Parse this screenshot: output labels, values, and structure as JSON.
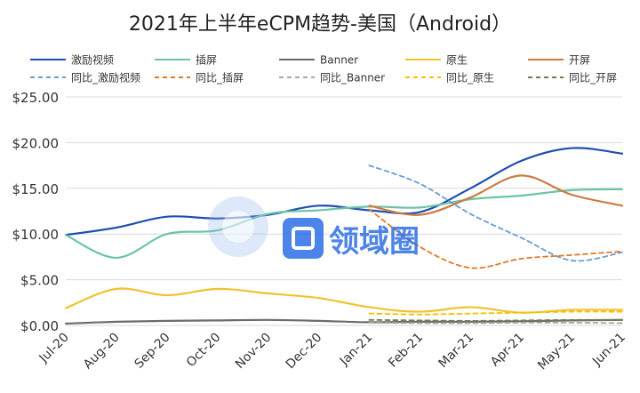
{
  "chart_data": {
    "type": "line",
    "title": "2021年上半年eCPM趋势-美国（Android）",
    "categories": [
      "Jul-20",
      "Aug-20",
      "Sep-20",
      "Oct-20",
      "Nov-20",
      "Dec-20",
      "Jan-21",
      "Feb-21",
      "Mar-21",
      "Apr-21",
      "May-21",
      "Jun-21"
    ],
    "ylim": [
      0,
      25
    ],
    "yticks": [
      "$0.00",
      "$5.00",
      "$10.00",
      "$15.00",
      "$20.00",
      "$25.00"
    ],
    "ytick_values": [
      0,
      5,
      10,
      15,
      20,
      25
    ],
    "grid": true,
    "legend_position": "top",
    "series": [
      {
        "name": "激励视频",
        "color": "#1f4fb0",
        "dashed": false,
        "values": [
          9.9,
          10.7,
          11.9,
          11.7,
          12.1,
          13.1,
          12.6,
          12.4,
          15.0,
          18.0,
          19.4,
          18.8
        ]
      },
      {
        "name": "插屏",
        "color": "#6cc4a4",
        "dashed": false,
        "values": [
          9.9,
          7.4,
          10.0,
          10.4,
          12.2,
          12.6,
          13.0,
          12.9,
          13.8,
          14.2,
          14.8,
          14.9
        ]
      },
      {
        "name": "Banner",
        "color": "#6b6b6b",
        "dashed": false,
        "values": [
          0.2,
          0.4,
          0.5,
          0.55,
          0.6,
          0.5,
          0.35,
          0.4,
          0.4,
          0.45,
          0.55,
          0.6
        ]
      },
      {
        "name": "原生",
        "color": "#f2c12e",
        "dashed": false,
        "values": [
          1.9,
          4.0,
          3.3,
          4.0,
          3.5,
          3.0,
          2.0,
          1.5,
          2.0,
          1.4,
          1.7,
          1.7
        ]
      },
      {
        "name": "开屏",
        "color": "#cc7b42",
        "dashed": false,
        "values": [
          null,
          null,
          null,
          null,
          null,
          null,
          13.1,
          12.1,
          14.0,
          16.4,
          14.3,
          13.1
        ]
      },
      {
        "name": "同比_激励视频",
        "color": "#6a9bd6",
        "dashed": true,
        "values": [
          null,
          null,
          null,
          null,
          null,
          null,
          17.5,
          15.5,
          12.2,
          9.6,
          7.1,
          8.0
        ]
      },
      {
        "name": "同比_插屏",
        "color": "#e07b2a",
        "dashed": true,
        "values": [
          null,
          null,
          null,
          null,
          null,
          null,
          12.7,
          8.6,
          6.3,
          7.3,
          7.7,
          8.1
        ]
      },
      {
        "name": "同比_Banner",
        "color": "#a6a6a6",
        "dashed": true,
        "values": [
          null,
          null,
          null,
          null,
          null,
          null,
          0.3,
          0.25,
          0.25,
          0.3,
          0.3,
          0.25
        ]
      },
      {
        "name": "同比_原生",
        "color": "#f5c000",
        "dashed": true,
        "values": [
          null,
          null,
          null,
          null,
          null,
          null,
          1.3,
          1.2,
          1.3,
          1.4,
          1.5,
          1.5
        ]
      },
      {
        "name": "同比_开屏",
        "color": "#6e7f4e",
        "dashed": true,
        "values": [
          null,
          null,
          null,
          null,
          null,
          null,
          0.6,
          0.55,
          0.5,
          0.55,
          0.6,
          0.6
        ]
      }
    ],
    "watermark_text": "领域圈"
  }
}
